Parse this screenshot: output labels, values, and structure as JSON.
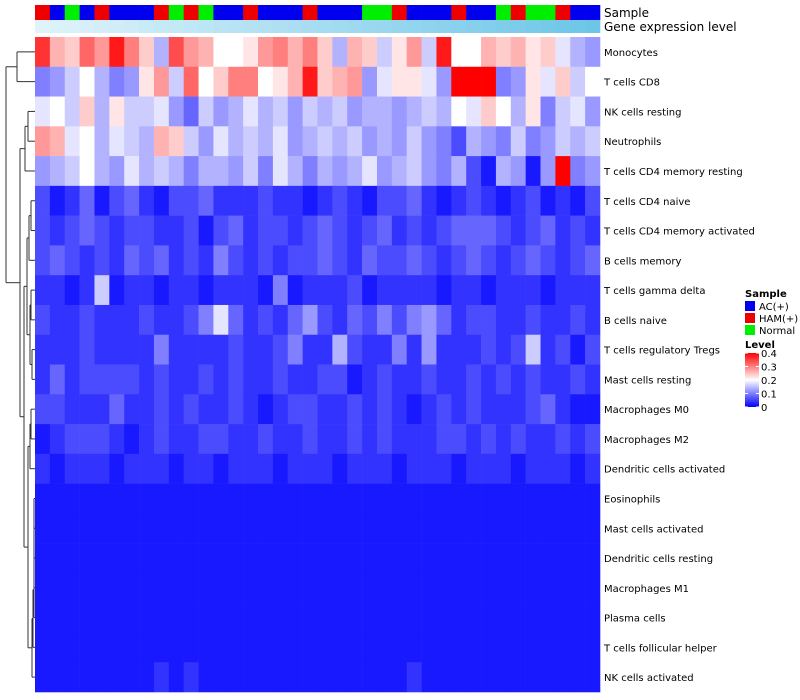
{
  "chart_data": {
    "type": "heatmap",
    "title": "",
    "annotation_tracks": [
      {
        "name": "Sample",
        "categories": [
          "AC(+)",
          "HAM(+)",
          "Normal"
        ],
        "colors": {
          "AC(+)": "#0000ee",
          "HAM(+)": "#ee0000",
          "Normal": "#00ee00"
        },
        "values": [
          "HAM(+)",
          "AC(+)",
          "Normal",
          "AC(+)",
          "HAM(+)",
          "AC(+)",
          "AC(+)",
          "AC(+)",
          "HAM(+)",
          "Normal",
          "HAM(+)",
          "Normal",
          "AC(+)",
          "AC(+)",
          "HAM(+)",
          "AC(+)",
          "AC(+)",
          "AC(+)",
          "HAM(+)",
          "AC(+)",
          "AC(+)",
          "AC(+)",
          "Normal",
          "Normal",
          "HAM(+)",
          "AC(+)",
          "AC(+)",
          "AC(+)",
          "HAM(+)",
          "AC(+)",
          "AC(+)",
          "Normal",
          "HAM(+)",
          "Normal",
          "Normal",
          "HAM(+)",
          "AC(+)",
          "AC(+)"
        ]
      },
      {
        "name": "Gene expression level",
        "low_color": "#dff3fa",
        "high_color": "#6dc6e8"
      }
    ],
    "rows": [
      "Monocytes",
      "T cells CD8",
      "NK cells resting",
      "Neutrophils",
      "T cells CD4 memory resting",
      "T cells CD4 naive",
      "T cells CD4 memory activated",
      "B cells memory",
      "T cells gamma delta",
      "B cells naive",
      "T cells regulatory  Tregs",
      "Mast cells resting",
      "Macrophages M0",
      "Macrophages M2",
      "Dendritic cells activated",
      "Eosinophils",
      "Mast cells activated",
      "Dendritic cells resting",
      "Macrophages M1",
      "Plasma cells",
      "T cells follicular helper",
      "NK cells activated"
    ],
    "n_columns": 38,
    "values": [
      [
        0.36,
        0.26,
        0.24,
        0.32,
        0.28,
        0.38,
        0.3,
        0.24,
        0.14,
        0.34,
        0.28,
        0.26,
        0.2,
        0.2,
        0.22,
        0.28,
        0.3,
        0.26,
        0.3,
        0.24,
        0.14,
        0.26,
        0.24,
        0.16,
        0.22,
        0.28,
        0.16,
        0.38,
        0.2,
        0.2,
        0.26,
        0.24,
        0.26,
        0.22,
        0.24,
        0.18,
        0.14,
        0.12
      ],
      [
        0.1,
        0.12,
        0.16,
        0.2,
        0.14,
        0.1,
        0.12,
        0.22,
        0.28,
        0.16,
        0.32,
        0.2,
        0.24,
        0.3,
        0.3,
        0.2,
        0.22,
        0.26,
        0.38,
        0.24,
        0.26,
        0.28,
        0.12,
        0.18,
        0.22,
        0.22,
        0.18,
        0.12,
        0.4,
        0.4,
        0.4,
        0.1,
        0.12,
        0.22,
        0.18,
        0.24,
        0.16,
        0.2
      ],
      [
        0.18,
        0.2,
        0.16,
        0.24,
        0.14,
        0.22,
        0.16,
        0.16,
        0.18,
        0.12,
        0.08,
        0.16,
        0.12,
        0.14,
        0.18,
        0.14,
        0.16,
        0.12,
        0.16,
        0.14,
        0.16,
        0.12,
        0.14,
        0.14,
        0.12,
        0.14,
        0.16,
        0.14,
        0.2,
        0.18,
        0.24,
        0.2,
        0.14,
        0.22,
        0.1,
        0.16,
        0.18,
        0.12
      ],
      [
        0.28,
        0.26,
        0.18,
        0.2,
        0.14,
        0.18,
        0.16,
        0.14,
        0.26,
        0.24,
        0.16,
        0.12,
        0.18,
        0.14,
        0.16,
        0.14,
        0.18,
        0.12,
        0.14,
        0.16,
        0.14,
        0.16,
        0.12,
        0.14,
        0.12,
        0.16,
        0.12,
        0.1,
        0.06,
        0.14,
        0.12,
        0.1,
        0.16,
        0.1,
        0.12,
        0.16,
        0.14,
        0.16
      ],
      [
        0.12,
        0.14,
        0.16,
        0.2,
        0.14,
        0.12,
        0.18,
        0.14,
        0.16,
        0.14,
        0.1,
        0.14,
        0.14,
        0.12,
        0.16,
        0.1,
        0.18,
        0.14,
        0.1,
        0.14,
        0.12,
        0.14,
        0.18,
        0.12,
        0.14,
        0.16,
        0.12,
        0.1,
        0.14,
        0.06,
        0.02,
        0.14,
        0.12,
        0.02,
        0.12,
        0.4,
        0.1,
        0.12
      ],
      [
        0.06,
        0.02,
        0.04,
        0.08,
        0.02,
        0.06,
        0.08,
        0.04,
        0.02,
        0.06,
        0.06,
        0.08,
        0.04,
        0.04,
        0.04,
        0.06,
        0.04,
        0.04,
        0.02,
        0.04,
        0.06,
        0.04,
        0.02,
        0.06,
        0.06,
        0.08,
        0.04,
        0.02,
        0.04,
        0.06,
        0.04,
        0.02,
        0.04,
        0.06,
        0.02,
        0.04,
        0.02,
        0.06
      ],
      [
        0.06,
        0.04,
        0.06,
        0.08,
        0.06,
        0.04,
        0.06,
        0.06,
        0.04,
        0.04,
        0.06,
        0.02,
        0.06,
        0.08,
        0.04,
        0.06,
        0.06,
        0.04,
        0.06,
        0.08,
        0.06,
        0.04,
        0.06,
        0.08,
        0.04,
        0.06,
        0.04,
        0.06,
        0.08,
        0.08,
        0.08,
        0.06,
        0.04,
        0.06,
        0.08,
        0.04,
        0.06,
        0.04
      ],
      [
        0.06,
        0.08,
        0.06,
        0.04,
        0.06,
        0.04,
        0.08,
        0.06,
        0.08,
        0.04,
        0.06,
        0.04,
        0.1,
        0.06,
        0.04,
        0.06,
        0.04,
        0.06,
        0.06,
        0.08,
        0.06,
        0.04,
        0.08,
        0.06,
        0.06,
        0.08,
        0.06,
        0.04,
        0.06,
        0.08,
        0.06,
        0.04,
        0.06,
        0.08,
        0.06,
        0.04,
        0.06,
        0.08
      ],
      [
        0.04,
        0.04,
        0.02,
        0.04,
        0.16,
        0.02,
        0.04,
        0.04,
        0.02,
        0.04,
        0.04,
        0.02,
        0.04,
        0.04,
        0.04,
        0.02,
        0.1,
        0.02,
        0.04,
        0.04,
        0.04,
        0.06,
        0.02,
        0.04,
        0.04,
        0.04,
        0.04,
        0.02,
        0.04,
        0.04,
        0.02,
        0.04,
        0.04,
        0.04,
        0.02,
        0.04,
        0.04,
        0.04
      ],
      [
        0.06,
        0.04,
        0.04,
        0.06,
        0.04,
        0.04,
        0.04,
        0.06,
        0.04,
        0.04,
        0.06,
        0.1,
        0.18,
        0.08,
        0.04,
        0.06,
        0.04,
        0.08,
        0.12,
        0.06,
        0.04,
        0.08,
        0.06,
        0.1,
        0.06,
        0.1,
        0.12,
        0.08,
        0.04,
        0.06,
        0.06,
        0.04,
        0.04,
        0.06,
        0.04,
        0.04,
        0.06,
        0.04
      ],
      [
        0.04,
        0.04,
        0.04,
        0.06,
        0.04,
        0.04,
        0.04,
        0.04,
        0.1,
        0.04,
        0.04,
        0.04,
        0.04,
        0.06,
        0.04,
        0.04,
        0.06,
        0.1,
        0.04,
        0.04,
        0.14,
        0.06,
        0.04,
        0.04,
        0.1,
        0.04,
        0.12,
        0.04,
        0.04,
        0.04,
        0.06,
        0.04,
        0.06,
        0.16,
        0.04,
        0.06,
        0.02,
        0.06
      ],
      [
        0.04,
        0.08,
        0.04,
        0.06,
        0.06,
        0.06,
        0.06,
        0.04,
        0.06,
        0.04,
        0.04,
        0.06,
        0.04,
        0.06,
        0.04,
        0.04,
        0.06,
        0.04,
        0.04,
        0.06,
        0.06,
        0.02,
        0.04,
        0.06,
        0.04,
        0.04,
        0.06,
        0.04,
        0.04,
        0.06,
        0.04,
        0.06,
        0.04,
        0.06,
        0.04,
        0.04,
        0.06,
        0.04
      ],
      [
        0.06,
        0.06,
        0.04,
        0.04,
        0.04,
        0.08,
        0.04,
        0.04,
        0.06,
        0.04,
        0.06,
        0.04,
        0.04,
        0.06,
        0.04,
        0.02,
        0.04,
        0.06,
        0.06,
        0.04,
        0.04,
        0.06,
        0.04,
        0.06,
        0.04,
        0.02,
        0.04,
        0.06,
        0.04,
        0.06,
        0.04,
        0.04,
        0.04,
        0.06,
        0.08,
        0.04,
        0.02,
        0.02
      ],
      [
        0.02,
        0.04,
        0.06,
        0.06,
        0.06,
        0.04,
        0.02,
        0.04,
        0.06,
        0.04,
        0.04,
        0.06,
        0.06,
        0.04,
        0.04,
        0.06,
        0.04,
        0.04,
        0.06,
        0.04,
        0.04,
        0.06,
        0.04,
        0.06,
        0.04,
        0.04,
        0.04,
        0.06,
        0.06,
        0.04,
        0.06,
        0.04,
        0.06,
        0.04,
        0.04,
        0.06,
        0.04,
        0.06
      ],
      [
        0.04,
        0.02,
        0.04,
        0.04,
        0.04,
        0.02,
        0.04,
        0.04,
        0.04,
        0.02,
        0.04,
        0.04,
        0.02,
        0.04,
        0.04,
        0.04,
        0.02,
        0.04,
        0.04,
        0.04,
        0.02,
        0.04,
        0.04,
        0.04,
        0.02,
        0.04,
        0.04,
        0.04,
        0.02,
        0.04,
        0.04,
        0.04,
        0.02,
        0.04,
        0.04,
        0.04,
        0.02,
        0.04
      ],
      [
        0.02,
        0.02,
        0.02,
        0.02,
        0.02,
        0.02,
        0.02,
        0.02,
        0.02,
        0.02,
        0.02,
        0.02,
        0.02,
        0.02,
        0.02,
        0.02,
        0.02,
        0.02,
        0.02,
        0.02,
        0.02,
        0.02,
        0.02,
        0.02,
        0.02,
        0.02,
        0.02,
        0.02,
        0.02,
        0.02,
        0.02,
        0.02,
        0.02,
        0.02,
        0.02,
        0.02,
        0.02,
        0.02
      ],
      [
        0.02,
        0.02,
        0.02,
        0.02,
        0.02,
        0.02,
        0.02,
        0.02,
        0.02,
        0.02,
        0.02,
        0.02,
        0.02,
        0.02,
        0.02,
        0.02,
        0.02,
        0.02,
        0.02,
        0.02,
        0.02,
        0.02,
        0.02,
        0.02,
        0.02,
        0.02,
        0.02,
        0.02,
        0.02,
        0.02,
        0.02,
        0.02,
        0.02,
        0.02,
        0.02,
        0.02,
        0.02,
        0.02
      ],
      [
        0.02,
        0.02,
        0.02,
        0.02,
        0.02,
        0.02,
        0.02,
        0.02,
        0.02,
        0.02,
        0.02,
        0.02,
        0.02,
        0.02,
        0.02,
        0.02,
        0.02,
        0.02,
        0.02,
        0.02,
        0.02,
        0.02,
        0.02,
        0.02,
        0.02,
        0.02,
        0.02,
        0.02,
        0.02,
        0.02,
        0.02,
        0.02,
        0.02,
        0.02,
        0.02,
        0.02,
        0.02,
        0.02
      ],
      [
        0.02,
        0.02,
        0.02,
        0.02,
        0.02,
        0.02,
        0.02,
        0.02,
        0.02,
        0.02,
        0.02,
        0.02,
        0.02,
        0.02,
        0.02,
        0.02,
        0.02,
        0.02,
        0.02,
        0.02,
        0.02,
        0.02,
        0.02,
        0.02,
        0.02,
        0.02,
        0.02,
        0.02,
        0.02,
        0.02,
        0.02,
        0.02,
        0.02,
        0.02,
        0.02,
        0.02,
        0.02,
        0.02
      ],
      [
        0.02,
        0.02,
        0.02,
        0.02,
        0.02,
        0.02,
        0.02,
        0.02,
        0.02,
        0.02,
        0.02,
        0.02,
        0.02,
        0.02,
        0.02,
        0.02,
        0.02,
        0.02,
        0.02,
        0.02,
        0.02,
        0.02,
        0.02,
        0.02,
        0.02,
        0.02,
        0.02,
        0.02,
        0.02,
        0.02,
        0.02,
        0.02,
        0.02,
        0.02,
        0.02,
        0.02,
        0.02,
        0.02
      ],
      [
        0.02,
        0.02,
        0.02,
        0.02,
        0.02,
        0.02,
        0.02,
        0.02,
        0.02,
        0.02,
        0.02,
        0.02,
        0.02,
        0.02,
        0.02,
        0.02,
        0.02,
        0.02,
        0.02,
        0.02,
        0.02,
        0.02,
        0.02,
        0.02,
        0.02,
        0.02,
        0.02,
        0.02,
        0.02,
        0.02,
        0.02,
        0.02,
        0.02,
        0.02,
        0.02,
        0.02,
        0.02,
        0.02
      ],
      [
        0.02,
        0.02,
        0.02,
        0.02,
        0.02,
        0.02,
        0.02,
        0.02,
        0.04,
        0.02,
        0.04,
        0.02,
        0.02,
        0.02,
        0.02,
        0.02,
        0.02,
        0.02,
        0.02,
        0.02,
        0.02,
        0.02,
        0.02,
        0.02,
        0.02,
        0.04,
        0.02,
        0.02,
        0.02,
        0.02,
        0.02,
        0.02,
        0.02,
        0.02,
        0.02,
        0.02,
        0.02,
        0.02
      ]
    ],
    "color_scale": {
      "min": 0,
      "max": 0.4,
      "stops": [
        {
          "value": 0,
          "color": "#0000ff"
        },
        {
          "value": 0.1,
          "color": "#7f7fff"
        },
        {
          "value": 0.2,
          "color": "#ffffff"
        },
        {
          "value": 0.3,
          "color": "#ff7f7f"
        },
        {
          "value": 0.4,
          "color": "#ff0000"
        }
      ]
    },
    "legend": {
      "sample_title": "Sample",
      "sample_items": [
        "AC(+)",
        "HAM(+)",
        "Normal"
      ],
      "level_title": "Level",
      "level_ticks": [
        "0.4",
        "0.3",
        "0.2",
        "0.1",
        "0"
      ],
      "placement": "right"
    },
    "row_dendrogram": true,
    "column_dendrogram": false
  }
}
